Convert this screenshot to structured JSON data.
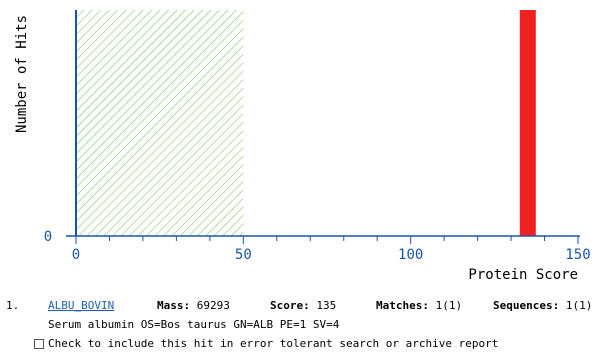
{
  "chart_data": {
    "type": "bar",
    "ylabel": "Number of Hits",
    "xlabel": "Protein Score",
    "xlim": [
      0,
      150
    ],
    "xticks": [
      0,
      50,
      100,
      150
    ],
    "yticks": [
      0
    ],
    "threshold_region": [
      0,
      50
    ],
    "bars": [
      {
        "x": 135,
        "value": 1
      }
    ],
    "colors": {
      "axis": "#1a55a5",
      "bar": "#ee2222",
      "hatch": "#7ec86a"
    }
  },
  "hit": {
    "index": "1.",
    "accession": "ALBU_BOVIN",
    "mass_label": "Mass:",
    "mass": "69293",
    "score_label": "Score:",
    "score": "135",
    "matches_label": "Matches:",
    "matches": "1(1)",
    "sequences_label": "Sequences:",
    "sequences": "1(1)",
    "description": "Serum albumin OS=Bos taurus GN=ALB PE=1 SV=4",
    "checkbox_label": "Check to include this hit in error tolerant search or archive report"
  }
}
